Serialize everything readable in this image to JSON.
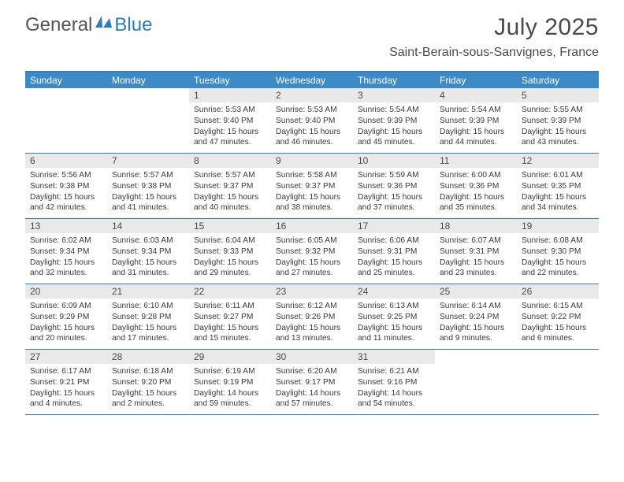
{
  "logo": {
    "general": "General",
    "blue": "Blue"
  },
  "title": "July 2025",
  "location": "Saint-Berain-sous-Sanvignes, France",
  "colors": {
    "header_bar": "#3d8ac6",
    "border": "#2f7bbf",
    "daynum_bg": "#e9e9e9",
    "text": "#4a4a4a"
  },
  "weekdays": [
    "Sunday",
    "Monday",
    "Tuesday",
    "Wednesday",
    "Thursday",
    "Friday",
    "Saturday"
  ],
  "weeks": [
    [
      {
        "num": "",
        "sunrise": "",
        "sunset": "",
        "daylight": ""
      },
      {
        "num": "",
        "sunrise": "",
        "sunset": "",
        "daylight": ""
      },
      {
        "num": "1",
        "sunrise": "Sunrise: 5:53 AM",
        "sunset": "Sunset: 9:40 PM",
        "daylight": "Daylight: 15 hours and 47 minutes."
      },
      {
        "num": "2",
        "sunrise": "Sunrise: 5:53 AM",
        "sunset": "Sunset: 9:40 PM",
        "daylight": "Daylight: 15 hours and 46 minutes."
      },
      {
        "num": "3",
        "sunrise": "Sunrise: 5:54 AM",
        "sunset": "Sunset: 9:39 PM",
        "daylight": "Daylight: 15 hours and 45 minutes."
      },
      {
        "num": "4",
        "sunrise": "Sunrise: 5:54 AM",
        "sunset": "Sunset: 9:39 PM",
        "daylight": "Daylight: 15 hours and 44 minutes."
      },
      {
        "num": "5",
        "sunrise": "Sunrise: 5:55 AM",
        "sunset": "Sunset: 9:39 PM",
        "daylight": "Daylight: 15 hours and 43 minutes."
      }
    ],
    [
      {
        "num": "6",
        "sunrise": "Sunrise: 5:56 AM",
        "sunset": "Sunset: 9:38 PM",
        "daylight": "Daylight: 15 hours and 42 minutes."
      },
      {
        "num": "7",
        "sunrise": "Sunrise: 5:57 AM",
        "sunset": "Sunset: 9:38 PM",
        "daylight": "Daylight: 15 hours and 41 minutes."
      },
      {
        "num": "8",
        "sunrise": "Sunrise: 5:57 AM",
        "sunset": "Sunset: 9:37 PM",
        "daylight": "Daylight: 15 hours and 40 minutes."
      },
      {
        "num": "9",
        "sunrise": "Sunrise: 5:58 AM",
        "sunset": "Sunset: 9:37 PM",
        "daylight": "Daylight: 15 hours and 38 minutes."
      },
      {
        "num": "10",
        "sunrise": "Sunrise: 5:59 AM",
        "sunset": "Sunset: 9:36 PM",
        "daylight": "Daylight: 15 hours and 37 minutes."
      },
      {
        "num": "11",
        "sunrise": "Sunrise: 6:00 AM",
        "sunset": "Sunset: 9:36 PM",
        "daylight": "Daylight: 15 hours and 35 minutes."
      },
      {
        "num": "12",
        "sunrise": "Sunrise: 6:01 AM",
        "sunset": "Sunset: 9:35 PM",
        "daylight": "Daylight: 15 hours and 34 minutes."
      }
    ],
    [
      {
        "num": "13",
        "sunrise": "Sunrise: 6:02 AM",
        "sunset": "Sunset: 9:34 PM",
        "daylight": "Daylight: 15 hours and 32 minutes."
      },
      {
        "num": "14",
        "sunrise": "Sunrise: 6:03 AM",
        "sunset": "Sunset: 9:34 PM",
        "daylight": "Daylight: 15 hours and 31 minutes."
      },
      {
        "num": "15",
        "sunrise": "Sunrise: 6:04 AM",
        "sunset": "Sunset: 9:33 PM",
        "daylight": "Daylight: 15 hours and 29 minutes."
      },
      {
        "num": "16",
        "sunrise": "Sunrise: 6:05 AM",
        "sunset": "Sunset: 9:32 PM",
        "daylight": "Daylight: 15 hours and 27 minutes."
      },
      {
        "num": "17",
        "sunrise": "Sunrise: 6:06 AM",
        "sunset": "Sunset: 9:31 PM",
        "daylight": "Daylight: 15 hours and 25 minutes."
      },
      {
        "num": "18",
        "sunrise": "Sunrise: 6:07 AM",
        "sunset": "Sunset: 9:31 PM",
        "daylight": "Daylight: 15 hours and 23 minutes."
      },
      {
        "num": "19",
        "sunrise": "Sunrise: 6:08 AM",
        "sunset": "Sunset: 9:30 PM",
        "daylight": "Daylight: 15 hours and 22 minutes."
      }
    ],
    [
      {
        "num": "20",
        "sunrise": "Sunrise: 6:09 AM",
        "sunset": "Sunset: 9:29 PM",
        "daylight": "Daylight: 15 hours and 20 minutes."
      },
      {
        "num": "21",
        "sunrise": "Sunrise: 6:10 AM",
        "sunset": "Sunset: 9:28 PM",
        "daylight": "Daylight: 15 hours and 17 minutes."
      },
      {
        "num": "22",
        "sunrise": "Sunrise: 6:11 AM",
        "sunset": "Sunset: 9:27 PM",
        "daylight": "Daylight: 15 hours and 15 minutes."
      },
      {
        "num": "23",
        "sunrise": "Sunrise: 6:12 AM",
        "sunset": "Sunset: 9:26 PM",
        "daylight": "Daylight: 15 hours and 13 minutes."
      },
      {
        "num": "24",
        "sunrise": "Sunrise: 6:13 AM",
        "sunset": "Sunset: 9:25 PM",
        "daylight": "Daylight: 15 hours and 11 minutes."
      },
      {
        "num": "25",
        "sunrise": "Sunrise: 6:14 AM",
        "sunset": "Sunset: 9:24 PM",
        "daylight": "Daylight: 15 hours and 9 minutes."
      },
      {
        "num": "26",
        "sunrise": "Sunrise: 6:15 AM",
        "sunset": "Sunset: 9:22 PM",
        "daylight": "Daylight: 15 hours and 6 minutes."
      }
    ],
    [
      {
        "num": "27",
        "sunrise": "Sunrise: 6:17 AM",
        "sunset": "Sunset: 9:21 PM",
        "daylight": "Daylight: 15 hours and 4 minutes."
      },
      {
        "num": "28",
        "sunrise": "Sunrise: 6:18 AM",
        "sunset": "Sunset: 9:20 PM",
        "daylight": "Daylight: 15 hours and 2 minutes."
      },
      {
        "num": "29",
        "sunrise": "Sunrise: 6:19 AM",
        "sunset": "Sunset: 9:19 PM",
        "daylight": "Daylight: 14 hours and 59 minutes."
      },
      {
        "num": "30",
        "sunrise": "Sunrise: 6:20 AM",
        "sunset": "Sunset: 9:17 PM",
        "daylight": "Daylight: 14 hours and 57 minutes."
      },
      {
        "num": "31",
        "sunrise": "Sunrise: 6:21 AM",
        "sunset": "Sunset: 9:16 PM",
        "daylight": "Daylight: 14 hours and 54 minutes."
      },
      {
        "num": "",
        "sunrise": "",
        "sunset": "",
        "daylight": ""
      },
      {
        "num": "",
        "sunrise": "",
        "sunset": "",
        "daylight": ""
      }
    ]
  ]
}
